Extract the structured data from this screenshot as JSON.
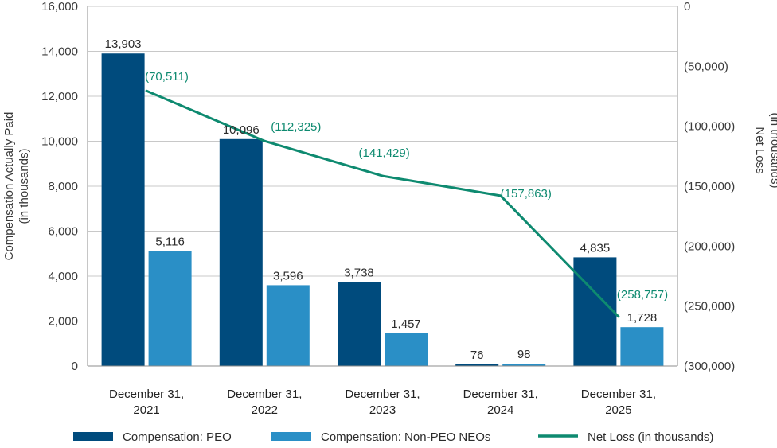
{
  "chart_data": {
    "type": "bar",
    "categories": [
      [
        "December 31,",
        "2021"
      ],
      [
        "December 31,",
        "2022"
      ],
      [
        "December 31,",
        "2023"
      ],
      [
        "December 31,",
        "2024"
      ],
      [
        "December 31,",
        "2025"
      ]
    ],
    "series": [
      {
        "name": "Compensation: PEO",
        "type": "bar",
        "axis": "left",
        "color": "#004b7d",
        "values": [
          13903,
          10096,
          3738,
          76,
          4835
        ],
        "labels": [
          "13,903",
          "10,096",
          "3,738",
          "76",
          "4,835"
        ]
      },
      {
        "name": "Compensation: Non-PEO NEOs",
        "type": "bar",
        "axis": "left",
        "color": "#2a8fc6",
        "values": [
          5116,
          3596,
          1457,
          98,
          1728
        ],
        "labels": [
          "5,116",
          "3,596",
          "1,457",
          "98",
          "1,728"
        ]
      },
      {
        "name": "Net Loss (in thousands)",
        "type": "line",
        "axis": "right",
        "color": "#0e8a70",
        "values": [
          -70511,
          -112325,
          -141429,
          -157863,
          -258757
        ],
        "labels": [
          "(70,511)",
          "(112,325)",
          "(141,429)",
          "(157,863)",
          "(258,757)"
        ]
      }
    ],
    "left_axis": {
      "label_lines": [
        "Compensation Actually Paid",
        "(in thousands)"
      ],
      "ylim": [
        0,
        16000
      ],
      "ticks": [
        0,
        2000,
        4000,
        6000,
        8000,
        10000,
        12000,
        14000,
        16000
      ],
      "tick_labels": [
        "0",
        "2,000",
        "4,000",
        "6,000",
        "8,000",
        "10,000",
        "12,000",
        "14,000",
        "16,000"
      ]
    },
    "right_axis": {
      "label_lines": [
        "Net Loss",
        "(in thousands)"
      ],
      "ylim": [
        -300000,
        0
      ],
      "ticks": [
        0,
        -50000,
        -100000,
        -150000,
        -200000,
        -250000,
        -300000
      ],
      "tick_labels": [
        "0",
        "(50,000)",
        "(100,000)",
        "(150,000)",
        "(200,000)",
        "(250,000)",
        "(300,000)"
      ]
    },
    "grid": true,
    "legend_position": "bottom",
    "colors": {
      "grid": "#c8c8c8",
      "axis": "#8c8c8c"
    }
  }
}
